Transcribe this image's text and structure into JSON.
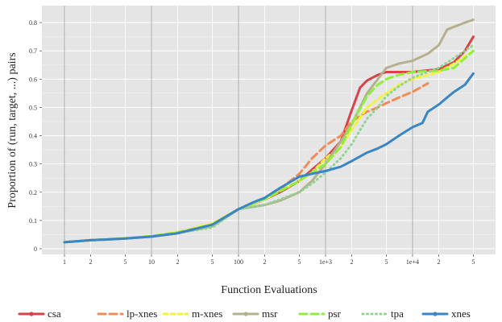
{
  "chart_data": {
    "type": "line",
    "title": "",
    "xlabel": "Function Evaluations",
    "ylabel": "Proportion of (run, target, ...) pairs",
    "x_scale": "log10",
    "xlim": [
      0.55,
      90000
    ],
    "ylim": [
      -0.02,
      0.86
    ],
    "grid": true,
    "legend_position": "bottom",
    "x_ticks": [
      {
        "value": 1,
        "label": "1"
      },
      {
        "value": 2,
        "label": "2"
      },
      {
        "value": 5,
        "label": "5"
      },
      {
        "value": 10,
        "label": "10"
      },
      {
        "value": 20,
        "label": "2"
      },
      {
        "value": 50,
        "label": "5"
      },
      {
        "value": 100,
        "label": "100"
      },
      {
        "value": 200,
        "label": "2"
      },
      {
        "value": 500,
        "label": "5"
      },
      {
        "value": 1000,
        "label": "1e+3"
      },
      {
        "value": 2000,
        "label": "2"
      },
      {
        "value": 5000,
        "label": "5"
      },
      {
        "value": 10000,
        "label": "1e+4"
      },
      {
        "value": 20000,
        "label": "2"
      },
      {
        "value": 50000,
        "label": "5"
      }
    ],
    "y_ticks": [
      {
        "value": 0,
        "label": "0"
      },
      {
        "value": 0.1,
        "label": "0.1"
      },
      {
        "value": 0.2,
        "label": "0.2"
      },
      {
        "value": 0.3,
        "label": "0.3"
      },
      {
        "value": 0.4,
        "label": "0.4"
      },
      {
        "value": 0.5,
        "label": "0.5"
      },
      {
        "value": 0.6,
        "label": "0.6"
      },
      {
        "value": 0.7,
        "label": "0.7"
      },
      {
        "value": 0.8,
        "label": "0.8"
      }
    ],
    "series": [
      {
        "name": "csa",
        "color": "#d7434d",
        "dash": "solid",
        "x": [
          1,
          2,
          5,
          10,
          20,
          50,
          100,
          200,
          300,
          500,
          700,
          1000,
          1500,
          2000,
          2500,
          3000,
          4000,
          5000,
          7000,
          10000,
          20000,
          30000,
          40000,
          50000
        ],
        "y": [
          0.023,
          0.03,
          0.036,
          0.043,
          0.055,
          0.08,
          0.14,
          0.175,
          0.2,
          0.24,
          0.28,
          0.32,
          0.38,
          0.49,
          0.57,
          0.595,
          0.615,
          0.625,
          0.625,
          0.625,
          0.635,
          0.66,
          0.7,
          0.75
        ]
      },
      {
        "name": "lp-xnes",
        "color": "#f08c57",
        "dash": "longdash",
        "x": [
          1,
          2,
          5,
          10,
          20,
          50,
          100,
          200,
          300,
          500,
          700,
          1000,
          1500,
          2000,
          2500,
          3000,
          4000,
          5000,
          7000,
          10000,
          15000
        ],
        "y": [
          0.023,
          0.03,
          0.036,
          0.043,
          0.055,
          0.08,
          0.14,
          0.175,
          0.21,
          0.265,
          0.32,
          0.365,
          0.4,
          0.45,
          0.47,
          0.485,
          0.5,
          0.515,
          0.535,
          0.555,
          0.585
        ]
      },
      {
        "name": "m-xnes",
        "color": "#f4f23a",
        "dash": "dashed",
        "x": [
          1,
          2,
          5,
          10,
          20,
          50,
          100,
          200,
          500,
          700,
          1000,
          1500,
          2000,
          3000,
          5000,
          7000,
          10000,
          20000,
          30000,
          50000
        ],
        "y": [
          0.023,
          0.03,
          0.037,
          0.045,
          0.06,
          0.09,
          0.14,
          0.175,
          0.24,
          0.27,
          0.32,
          0.36,
          0.42,
          0.5,
          0.55,
          0.58,
          0.6,
          0.625,
          0.655,
          0.7
        ]
      },
      {
        "name": "msr",
        "color": "#b4b08f",
        "dash": "solid",
        "x": [
          1,
          2,
          5,
          10,
          20,
          50,
          100,
          200,
          300,
          500,
          700,
          1000,
          1500,
          2000,
          3000,
          5000,
          7000,
          10000,
          15000,
          20000,
          25000,
          30000,
          40000,
          50000
        ],
        "y": [
          0.023,
          0.03,
          0.036,
          0.043,
          0.055,
          0.08,
          0.14,
          0.155,
          0.17,
          0.2,
          0.24,
          0.3,
          0.38,
          0.44,
          0.55,
          0.64,
          0.655,
          0.665,
          0.69,
          0.72,
          0.775,
          0.785,
          0.8,
          0.81
        ]
      },
      {
        "name": "psr",
        "color": "#8ff03c",
        "dash": "longdash",
        "x": [
          1,
          2,
          5,
          10,
          20,
          50,
          100,
          200,
          500,
          700,
          1000,
          1500,
          2000,
          3000,
          4000,
          5000,
          7000,
          10000,
          20000,
          30000,
          50000
        ],
        "y": [
          0.023,
          0.03,
          0.037,
          0.045,
          0.058,
          0.085,
          0.14,
          0.175,
          0.24,
          0.27,
          0.3,
          0.36,
          0.44,
          0.54,
          0.58,
          0.6,
          0.615,
          0.625,
          0.63,
          0.64,
          0.7
        ]
      },
      {
        "name": "tpa",
        "color": "#8fd493",
        "dash": "dotted",
        "x": [
          1,
          2,
          5,
          10,
          20,
          50,
          100,
          200,
          500,
          700,
          1000,
          1500,
          2000,
          2500,
          3000,
          4000,
          5000,
          7000,
          10000,
          20000,
          30000,
          50000
        ],
        "y": [
          0.023,
          0.03,
          0.036,
          0.043,
          0.055,
          0.075,
          0.14,
          0.155,
          0.2,
          0.23,
          0.27,
          0.32,
          0.37,
          0.42,
          0.46,
          0.5,
          0.54,
          0.575,
          0.605,
          0.64,
          0.675,
          0.72
        ]
      },
      {
        "name": "xnes",
        "color": "#3a86c4",
        "dash": "solid",
        "x": [
          1,
          2,
          5,
          10,
          20,
          50,
          100,
          150,
          200,
          300,
          500,
          700,
          1000,
          1500,
          2000,
          3000,
          4000,
          5000,
          7000,
          10000,
          13000,
          15000,
          20000,
          25000,
          30000,
          40000,
          50000
        ],
        "y": [
          0.023,
          0.03,
          0.036,
          0.043,
          0.055,
          0.085,
          0.14,
          0.165,
          0.18,
          0.215,
          0.255,
          0.265,
          0.275,
          0.29,
          0.31,
          0.34,
          0.355,
          0.37,
          0.4,
          0.43,
          0.445,
          0.485,
          0.51,
          0.535,
          0.555,
          0.58,
          0.62
        ]
      }
    ]
  }
}
